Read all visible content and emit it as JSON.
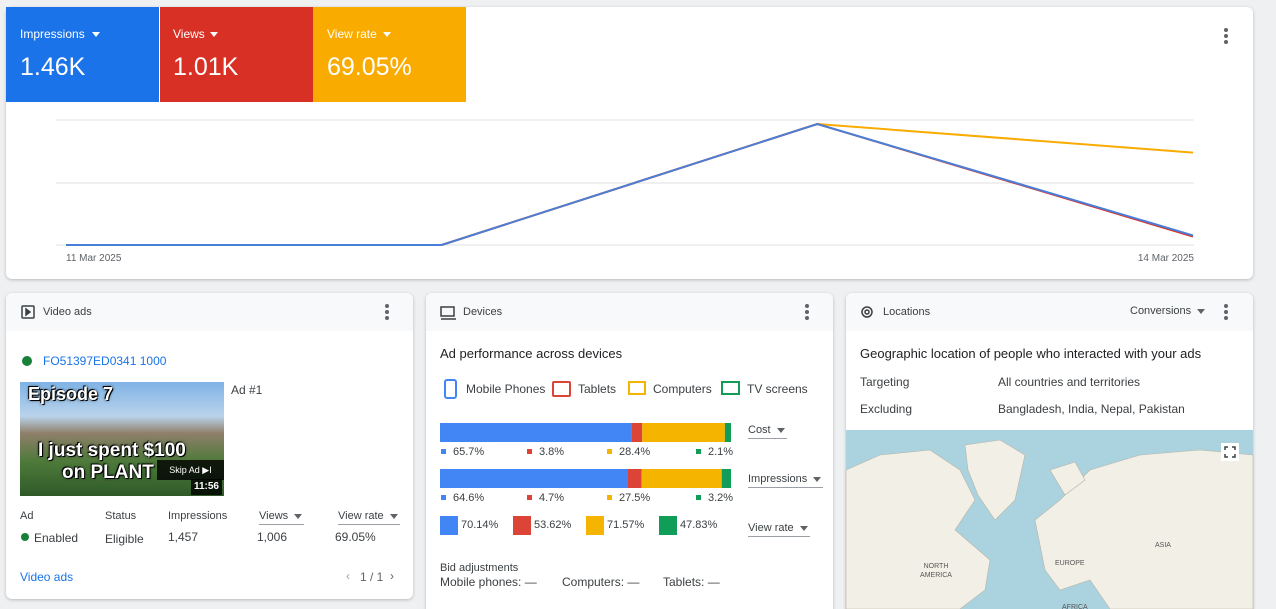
{
  "metrics": [
    {
      "label": "Impressions",
      "value": "1.46K",
      "color": "#1a73e8"
    },
    {
      "label": "Views",
      "value": "1.01K",
      "color": "#d93025"
    },
    {
      "label": "View rate",
      "value": "69.05%",
      "color": "#f9ab00"
    }
  ],
  "trend": {
    "x_labels": [
      "11 Mar 2025",
      "14 Mar 2025"
    ],
    "series": [
      {
        "color": "#f9ab00",
        "values": [
          0,
          0,
          72,
          55
        ]
      },
      {
        "color": "#d93025",
        "values": [
          0,
          0,
          940,
          66
        ]
      },
      {
        "color": "#4a7fd8",
        "values": [
          0,
          0,
          1350,
          107
        ]
      }
    ]
  },
  "video_ads": {
    "title": "Video ads",
    "ad_id": "FO51397ED0341 1000",
    "thumbnail": {
      "episode": "Episode 7",
      "caption_line1": "I just spent $100",
      "caption_line2": "on PLANT",
      "skip": "Skip Ad ▶I",
      "duration": "11:56"
    },
    "ad_name": "Ad #1",
    "table": {
      "headers": [
        "Ad",
        "Status",
        "Impressions",
        "Views",
        "View rate"
      ],
      "rows": [
        [
          "Enabled",
          "Eligible",
          "1,457",
          "1,006",
          "69.05%"
        ]
      ]
    },
    "footer_link": "Video ads",
    "pagination": "1 / 1"
  },
  "devices": {
    "title": "Devices",
    "subtitle": "Ad performance across devices",
    "legend": [
      {
        "name": "Mobile Phones",
        "color": "#4285f4"
      },
      {
        "name": "Tablets",
        "color": "#db4437"
      },
      {
        "name": "Computers",
        "color": "#f4b400"
      },
      {
        "name": "TV screens",
        "color": "#0f9d58"
      }
    ],
    "rows": [
      {
        "metric": "Cost",
        "values": [
          65.7,
          3.8,
          28.4,
          2.1
        ],
        "value_labels": [
          "65.7%",
          "3.8%",
          "28.4%",
          "2.1%"
        ]
      },
      {
        "metric": "Impressions",
        "values": [
          64.6,
          4.7,
          27.5,
          3.2
        ],
        "value_labels": [
          "64.6%",
          "4.7%",
          "27.5%",
          "3.2%"
        ]
      },
      {
        "metric": "View rate",
        "labels": [
          "70.14%",
          "53.62%",
          "71.57%",
          "47.83%"
        ]
      }
    ],
    "bid_adjustments": {
      "title": "Bid adjustments",
      "items": [
        "Mobile phones: —",
        "Computers: —",
        "Tablets: —"
      ]
    }
  },
  "locations": {
    "title": "Locations",
    "metric_select": "Conversions",
    "subtitle": "Geographic location of people who interacted with your ads",
    "rows": [
      [
        "Targeting",
        "All countries and territories"
      ],
      [
        "Excluding",
        "Bangladesh, India, Nepal, Pakistan"
      ]
    ],
    "map_labels": [
      "NORTH AMERICA",
      "EUROPE",
      "ASIA",
      "AFRICA"
    ]
  }
}
